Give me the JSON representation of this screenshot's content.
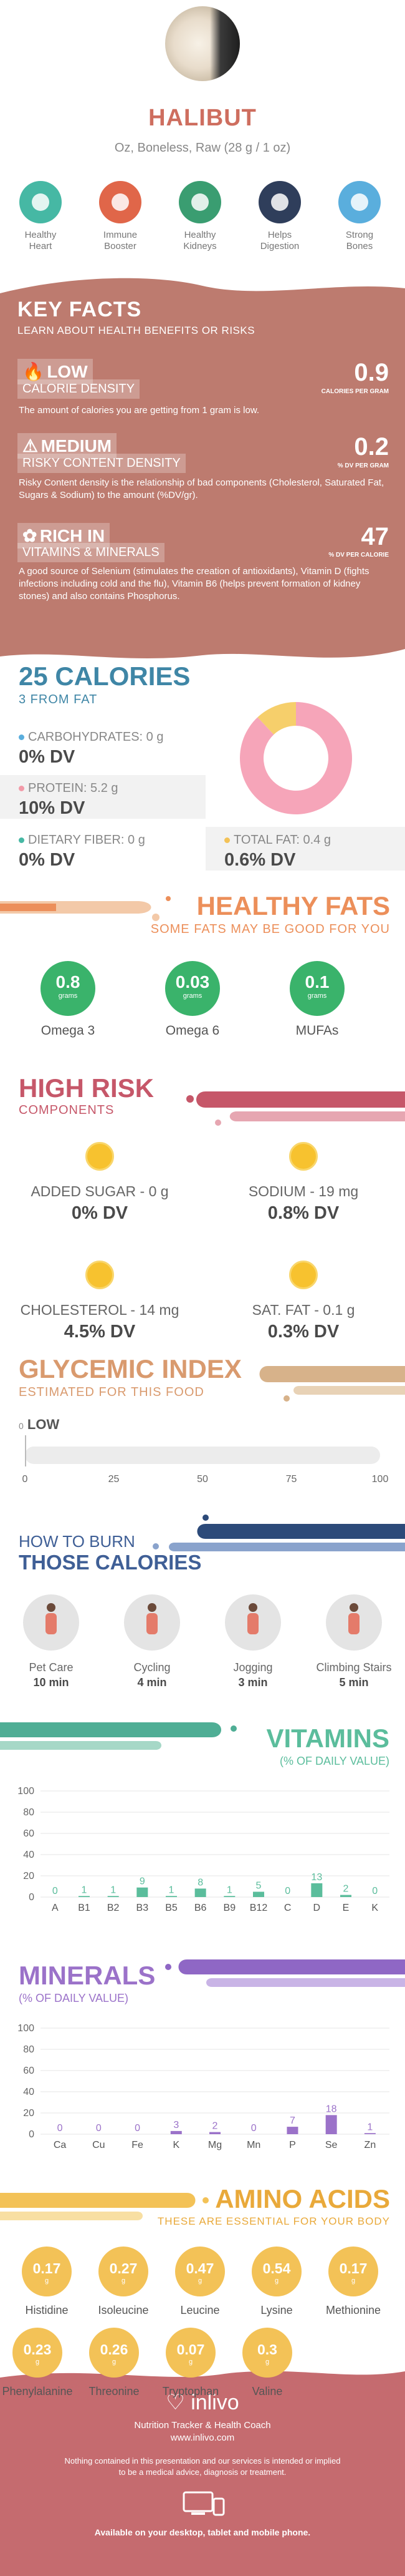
{
  "header": {
    "title": "HALIBUT",
    "subtitle": "Oz, Boneless, Raw (28 g / 1 oz)",
    "benefits": [
      {
        "label": "Healthy\nHeart",
        "color": "#46b8a4",
        "icon": "heart-icon"
      },
      {
        "label": "Immune\nBooster",
        "color": "#e06649",
        "icon": "shield-icon"
      },
      {
        "label": "Healthy\nKidneys",
        "color": "#3a9d71",
        "icon": "kidney-icon"
      },
      {
        "label": "Helps\nDigestion",
        "color": "#2f3e5b",
        "icon": "stomach-icon"
      },
      {
        "label": "Strong\nBones",
        "color": "#5aaedd",
        "icon": "bone-icon"
      }
    ]
  },
  "key_facts": {
    "title": "KEY FACTS",
    "subtitle": "LEARN ABOUT HEALTH BENEFITS OR RISKS",
    "items": [
      {
        "level": "LOW",
        "name": "CALORIE DENSITY",
        "value": "0.9",
        "unit": "CALORIES PER GRAM",
        "desc": "The amount of calories you are getting from 1 gram is low.",
        "icon": "flame-icon"
      },
      {
        "level": "MEDIUM",
        "name": "RISKY CONTENT DENSITY",
        "value": "0.2",
        "unit": "% DV PER GRAM",
        "desc": "Risky Content density is the relationship of bad components (Cholesterol, Saturated Fat, Sugars & Sodium) to the amount (%DV/gr).",
        "icon": "warning-icon"
      },
      {
        "level": "RICH IN",
        "name": "VITAMINS & MINERALS",
        "value": "47",
        "unit": "% DV PER CALORIE",
        "desc": "A good source of Selenium (stimulates the creation of antioxidants), Vitamin D (fights infections including cold and the flu), Vitamin B6 (helps prevent formation of kidney stones) and also contains Phosphorus.",
        "icon": "leaf-icon"
      }
    ]
  },
  "calories": {
    "title": "25 CALORIES",
    "subtitle": "3 FROM FAT",
    "nutrients": [
      {
        "label": "CARBOHYDRATES: 0 g",
        "dv": "0% DV",
        "color": "#5aaedd"
      },
      {
        "label": "PROTEIN: 5.2 g",
        "dv": "10% DV",
        "color": "#f29aa8"
      },
      {
        "label": "DIETARY FIBER: 0 g",
        "dv": "0% DV",
        "color": "#46b8a4"
      },
      {
        "label": "TOTAL FAT: 0.4 g",
        "dv": "0.6% DV",
        "color": "#f3c257"
      }
    ],
    "donut": {
      "protein": 88,
      "fat": 12
    }
  },
  "fats": {
    "title": "HEALTHY FATS",
    "subtitle": "SOME FATS MAY BE GOOD FOR YOU",
    "unit": "grams",
    "items": [
      {
        "value": "0.8",
        "label": "Omega 3"
      },
      {
        "value": "0.03",
        "label": "Omega 6"
      },
      {
        "value": "0.1",
        "label": "MUFAs"
      }
    ]
  },
  "risk": {
    "title": "HIGH RISK",
    "subtitle": "COMPONENTS",
    "items": [
      {
        "label": "ADDED SUGAR - 0 g",
        "dv": "0% DV"
      },
      {
        "label": "SODIUM - 19 mg",
        "dv": "0.8% DV"
      },
      {
        "label": "CHOLESTEROL - 14 mg",
        "dv": "4.5% DV"
      },
      {
        "label": "SAT. FAT - 0.1 g",
        "dv": "0.3% DV"
      }
    ]
  },
  "glycemic": {
    "title": "GLYCEMIC INDEX",
    "subtitle": "ESTIMATED FOR THIS FOOD",
    "value": "0",
    "level": "LOW",
    "ticks": [
      "0",
      "25",
      "50",
      "75",
      "100"
    ]
  },
  "burn": {
    "title1": "HOW TO BURN",
    "title2": "THOSE CALORIES",
    "items": [
      {
        "label": "Pet Care",
        "time": "10 min",
        "icon": "dog-walking-icon"
      },
      {
        "label": "Cycling",
        "time": "4 min",
        "icon": "cycling-icon"
      },
      {
        "label": "Jogging",
        "time": "3 min",
        "icon": "jogging-icon"
      },
      {
        "label": "Climbing Stairs",
        "time": "5 min",
        "icon": "stairs-icon"
      }
    ]
  },
  "chart_data": [
    {
      "type": "bar",
      "title": "VITAMINS",
      "subtitle": "(% OF DAILY VALUE)",
      "categories": [
        "A",
        "B1",
        "B2",
        "B3",
        "B5",
        "B6",
        "B9",
        "B12",
        "C",
        "D",
        "E",
        "K"
      ],
      "values": [
        0,
        1,
        1,
        9,
        1,
        8,
        1,
        5,
        0,
        13,
        2,
        0
      ],
      "ylim": [
        0,
        100
      ],
      "yticks": [
        "0",
        "20",
        "40",
        "60",
        "80",
        "100"
      ],
      "color": "#5bbd9c"
    },
    {
      "type": "bar",
      "title": "MINERALS",
      "subtitle": "(% OF DAILY VALUE)",
      "categories": [
        "Ca",
        "Cu",
        "Fe",
        "K",
        "Mg",
        "Mn",
        "P",
        "Se",
        "Zn"
      ],
      "values": [
        0,
        0,
        0,
        3,
        2,
        0,
        7,
        18,
        1
      ],
      "ylim": [
        0,
        100
      ],
      "yticks": [
        "0",
        "20",
        "40",
        "60",
        "80",
        "100"
      ],
      "color": "#9b72c9"
    }
  ],
  "amino": {
    "title": "AMINO ACIDS",
    "subtitle": "THESE ARE ESSENTIAL FOR YOUR BODY",
    "unit": "g",
    "row1": [
      {
        "value": "0.17",
        "label": "Histidine"
      },
      {
        "value": "0.27",
        "label": "Isoleucine"
      },
      {
        "value": "0.47",
        "label": "Leucine"
      },
      {
        "value": "0.54",
        "label": "Lysine"
      },
      {
        "value": "0.17",
        "label": "Methionine"
      }
    ],
    "row2": [
      {
        "value": "0.23",
        "label": "Phenylalanine"
      },
      {
        "value": "0.26",
        "label": "Threonine"
      },
      {
        "value": "0.07",
        "label": "Tryptophan"
      },
      {
        "value": "0.3",
        "label": "Valine"
      }
    ]
  },
  "footer": {
    "brand": "inlivo",
    "tagline": "Nutrition Tracker & Health Coach",
    "url": "www.inlivo.com",
    "disclaimer1": "Nothing contained in this presentation and our services is intended or implied",
    "disclaimer2": "to be a medical advice, diagnosis or treatment.",
    "available": "Available on your desktop, tablet and mobile phone."
  }
}
